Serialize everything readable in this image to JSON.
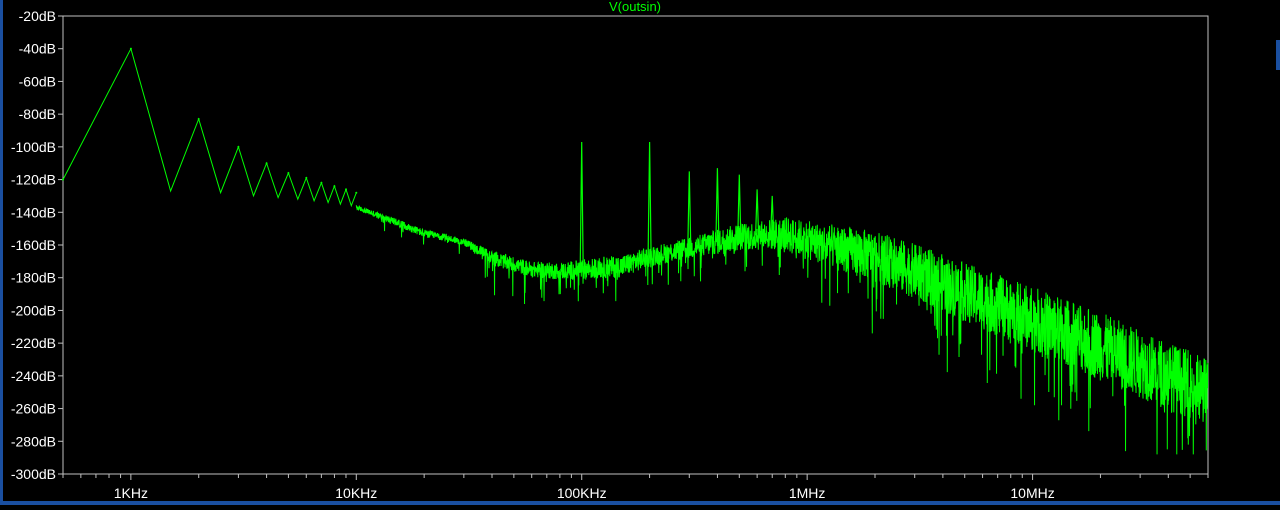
{
  "window": {
    "background_color": "#000000",
    "frame_color": "#1a4fa0",
    "plot_border_color": "#c0c0c0",
    "label_color": "#ffffff",
    "trace_color": "#00ff00"
  },
  "chart_data": {
    "type": "line",
    "title": "V(outsin)",
    "xscale": "log",
    "xlim": [
      500,
      60000000
    ],
    "ylim": [
      -300,
      -20
    ],
    "grid": false,
    "x_ticks": [
      {
        "value": 1000,
        "label": "1KHz"
      },
      {
        "value": 10000,
        "label": "10KHz"
      },
      {
        "value": 100000,
        "label": "100KHz"
      },
      {
        "value": 1000000,
        "label": "1MHz"
      },
      {
        "value": 10000000,
        "label": "10MHz"
      }
    ],
    "y_ticks": [
      {
        "value": -20,
        "label": "-20dB"
      },
      {
        "value": -40,
        "label": "-40dB"
      },
      {
        "value": -60,
        "label": "-60dB"
      },
      {
        "value": -80,
        "label": "-80dB"
      },
      {
        "value": -100,
        "label": "-100dB"
      },
      {
        "value": -120,
        "label": "-120dB"
      },
      {
        "value": -140,
        "label": "-140dB"
      },
      {
        "value": -160,
        "label": "-160dB"
      },
      {
        "value": -180,
        "label": "-180dB"
      },
      {
        "value": -200,
        "label": "-200dB"
      },
      {
        "value": -220,
        "label": "-220dB"
      },
      {
        "value": -240,
        "label": "-240dB"
      },
      {
        "value": -260,
        "label": "-260dB"
      },
      {
        "value": -280,
        "label": "-280dB"
      },
      {
        "value": -300,
        "label": "-300dB"
      }
    ],
    "series": [
      {
        "name": "V(outsin)",
        "color": "#00ff00",
        "harmonic_peaks": [
          {
            "x": 500,
            "y": -120
          },
          {
            "x": 1000,
            "y": -40
          },
          {
            "x": 2000,
            "y": -83
          },
          {
            "x": 3000,
            "y": -100
          },
          {
            "x": 4000,
            "y": -110
          },
          {
            "x": 5000,
            "y": -116
          },
          {
            "x": 6000,
            "y": -119
          },
          {
            "x": 7000,
            "y": -122
          },
          {
            "x": 8000,
            "y": -124
          },
          {
            "x": 9000,
            "y": -126
          },
          {
            "x": 10000,
            "y": -128
          }
        ],
        "harmonic_valleys": [
          {
            "x": 1500,
            "y": -127
          },
          {
            "x": 2500,
            "y": -128
          },
          {
            "x": 3500,
            "y": -130
          },
          {
            "x": 4500,
            "y": -131
          },
          {
            "x": 5500,
            "y": -132
          },
          {
            "x": 6500,
            "y": -133
          },
          {
            "x": 7500,
            "y": -134
          },
          {
            "x": 8500,
            "y": -135
          },
          {
            "x": 9500,
            "y": -136
          }
        ],
        "noise_envelope": [
          {
            "x": 10000,
            "mean": -137,
            "spread": 6
          },
          {
            "x": 15000,
            "mean": -146,
            "spread": 8
          },
          {
            "x": 20000,
            "mean": -153,
            "spread": 8
          },
          {
            "x": 30000,
            "mean": -158,
            "spread": 6
          },
          {
            "x": 40000,
            "mean": -168,
            "spread": 12
          },
          {
            "x": 60000,
            "mean": -175,
            "spread": 12
          },
          {
            "x": 80000,
            "mean": -176,
            "spread": 12
          },
          {
            "x": 100000,
            "mean": -175,
            "spread": 14
          },
          {
            "x": 150000,
            "mean": -173,
            "spread": 14
          },
          {
            "x": 200000,
            "mean": -167,
            "spread": 12
          },
          {
            "x": 300000,
            "mean": -162,
            "spread": 12
          },
          {
            "x": 500000,
            "mean": -155,
            "spread": 14
          },
          {
            "x": 800000,
            "mean": -153,
            "spread": 16
          },
          {
            "x": 1000000,
            "mean": -157,
            "spread": 18
          },
          {
            "x": 2000000,
            "mean": -167,
            "spread": 22
          },
          {
            "x": 3000000,
            "mean": -176,
            "spread": 24
          },
          {
            "x": 5000000,
            "mean": -189,
            "spread": 26
          },
          {
            "x": 10000000,
            "mean": -205,
            "spread": 28
          },
          {
            "x": 20000000,
            "mean": -222,
            "spread": 30
          },
          {
            "x": 40000000,
            "mean": -240,
            "spread": 30
          },
          {
            "x": 60000000,
            "mean": -250,
            "spread": 30
          }
        ],
        "spurs": [
          {
            "x": 100000,
            "y": -97
          },
          {
            "x": 200000,
            "y": -97
          },
          {
            "x": 300000,
            "y": -115
          },
          {
            "x": 400000,
            "y": -113
          },
          {
            "x": 500000,
            "y": -117
          },
          {
            "x": 600000,
            "y": -126
          },
          {
            "x": 700000,
            "y": -130
          }
        ]
      }
    ]
  }
}
